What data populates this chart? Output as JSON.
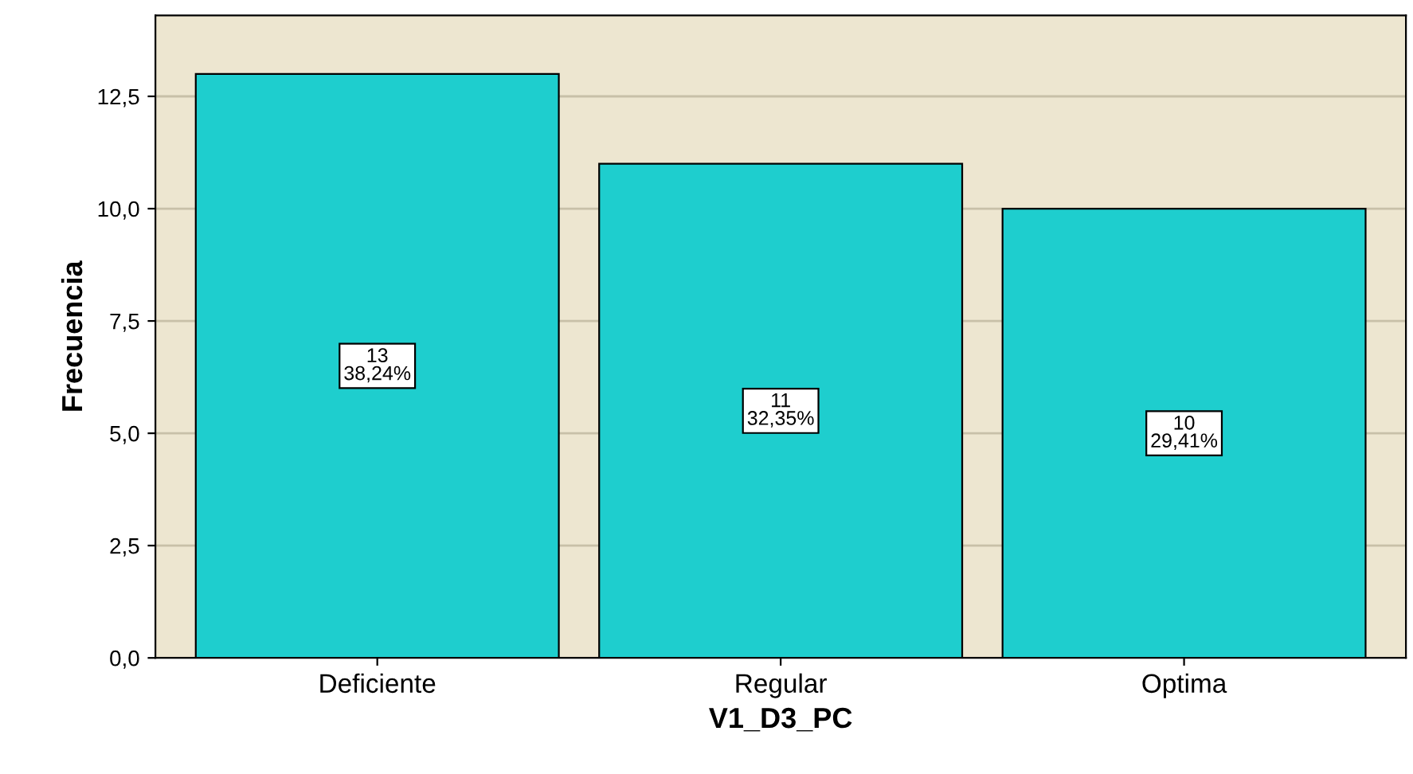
{
  "chart_data": {
    "type": "bar",
    "xlabel": "V1_D3_PC",
    "ylabel": "Frecuencia",
    "categories": [
      "Deficiente",
      "Regular",
      "Optima"
    ],
    "values": [
      13,
      11,
      10
    ],
    "value_labels": [
      "13\n38,24%",
      "11\n32,35%",
      "10\n29,41%"
    ],
    "color": "#1ecece",
    "ylim": [
      0,
      14.3
    ],
    "yticks": [
      {
        "value": 0,
        "label": "0,0"
      },
      {
        "value": 2.5,
        "label": "2,5"
      },
      {
        "value": 5,
        "label": "5,0"
      },
      {
        "value": 7.5,
        "label": "7,5"
      },
      {
        "value": 10,
        "label": "10,0"
      },
      {
        "value": 12.5,
        "label": "12,5"
      }
    ],
    "grid": "y"
  }
}
